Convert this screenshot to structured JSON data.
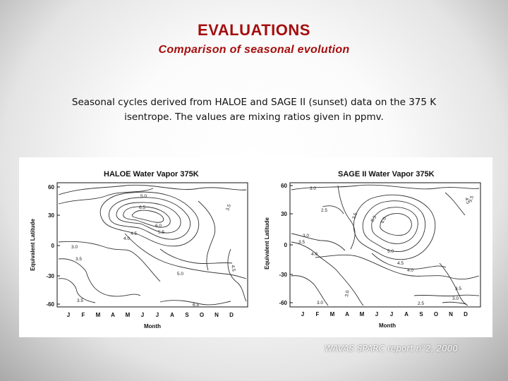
{
  "slide": {
    "title": "EVALUATIONS",
    "subtitle": "Comparison of seasonal evolution",
    "caption": "Seasonal cycles derived from HALOE and SAGE II (sunset) data on the 375 K isentrope. The values are mixing ratios given in ppmv.",
    "credit": "WAVAS SPARC report n°2,  2000"
  },
  "panels": [
    {
      "title": "HALOE Water Vapor 375K",
      "y_label": "Equivalent Latitude",
      "x_label": "Month",
      "y_ticks": [
        "60",
        "30",
        "0",
        "-30",
        "-60"
      ],
      "x_ticks": [
        "J",
        "F",
        "M",
        "A",
        "M",
        "J",
        "J",
        "A",
        "S",
        "O",
        "N",
        "D"
      ],
      "contour_labels": [
        "5.0",
        "6.5",
        "3.5",
        "6.0",
        "5.5",
        "4.5",
        "4.0",
        "3.0",
        "3.5",
        "5.0",
        "4.5",
        "3.5",
        "6.5"
      ]
    },
    {
      "title": "SAGE II Water Vapor 375K",
      "y_label": "Equivalent Latitude",
      "x_label": "Month",
      "y_ticks": [
        "60",
        "30",
        "0",
        "-30",
        "-60"
      ],
      "x_ticks": [
        "J",
        "F",
        "M",
        "A",
        "M",
        "J",
        "J",
        "A",
        "S",
        "O",
        "N",
        "D"
      ],
      "contour_labels": [
        "3.0",
        "4.5",
        "3.5",
        "2.5",
        "3.5",
        "5.5",
        "6.0",
        "3.0",
        "3.5",
        "4.0",
        "5.0",
        "4.5",
        "4.0",
        "3.0",
        "3.5",
        "3.0",
        "2.5",
        "3.0"
      ]
    }
  ]
}
